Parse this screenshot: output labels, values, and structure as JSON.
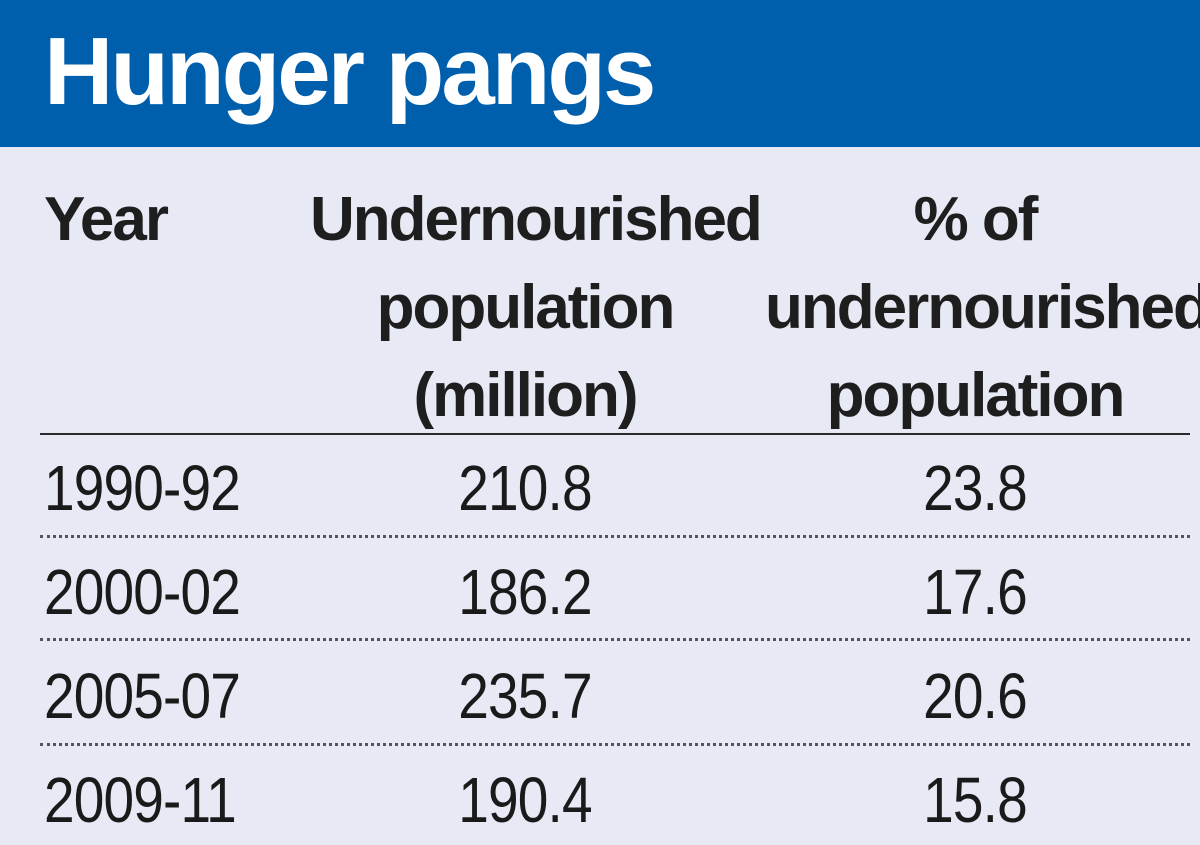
{
  "title": "Hunger pangs",
  "columns": {
    "year": [
      "Year"
    ],
    "population": [
      "Undernourished",
      "population",
      "(million)"
    ],
    "percent": [
      "% of",
      "undernourished",
      "population"
    ]
  },
  "rows": [
    {
      "year": "1990-92",
      "population": "210.8",
      "percent": "23.8"
    },
    {
      "year": "2000-02",
      "population": "186.2",
      "percent": "17.6"
    },
    {
      "year": "2005-07",
      "population": "235.7",
      "percent": "20.6"
    },
    {
      "year": "2009-11",
      "population": "190.4",
      "percent": "15.8"
    }
  ],
  "colors": {
    "header_bg": "#005fad",
    "page_bg": "#e7eaf4",
    "text": "#1a1a1a"
  },
  "chart_data": {
    "type": "table",
    "title": "Hunger pangs",
    "columns": [
      "Year",
      "Undernourished population (million)",
      "% of undernourished population"
    ],
    "categories": [
      "1990-92",
      "2000-02",
      "2005-07",
      "2009-11"
    ],
    "series": [
      {
        "name": "Undernourished population (million)",
        "values": [
          210.8,
          186.2,
          235.7,
          190.4
        ]
      },
      {
        "name": "% of undernourished population",
        "values": [
          23.8,
          17.6,
          20.6,
          15.8
        ]
      }
    ]
  }
}
